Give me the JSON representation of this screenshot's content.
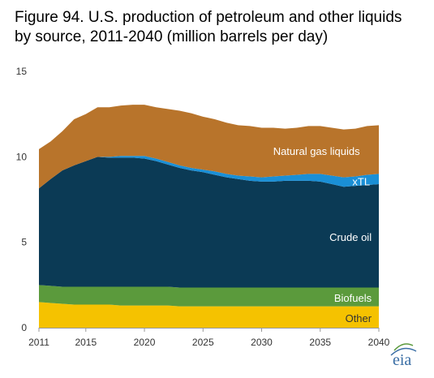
{
  "chart_data": {
    "type": "area",
    "title": "Figure 94. U.S. production of petroleum and other liquids by source, 2011-2040 (million barrels per day)",
    "x": [
      2011,
      2012,
      2013,
      2014,
      2015,
      2016,
      2017,
      2018,
      2019,
      2020,
      2021,
      2022,
      2023,
      2024,
      2025,
      2026,
      2027,
      2028,
      2029,
      2030,
      2031,
      2032,
      2033,
      2034,
      2035,
      2036,
      2037,
      2038,
      2039,
      2040
    ],
    "x_ticks": [
      2011,
      2015,
      2020,
      2025,
      2030,
      2035,
      2040
    ],
    "y_ticks": [
      0,
      5,
      10,
      15
    ],
    "ylim": [
      0,
      15
    ],
    "series": [
      {
        "name": "Other",
        "color": "#f5c200",
        "values": [
          1.5,
          1.45,
          1.4,
          1.35,
          1.35,
          1.35,
          1.35,
          1.3,
          1.3,
          1.3,
          1.3,
          1.3,
          1.25,
          1.25,
          1.25,
          1.25,
          1.25,
          1.25,
          1.25,
          1.25,
          1.25,
          1.25,
          1.25,
          1.25,
          1.25,
          1.25,
          1.25,
          1.25,
          1.25,
          1.25
        ]
      },
      {
        "name": "Biofuels",
        "color": "#5b9a3c",
        "values": [
          1.0,
          1.0,
          1.0,
          1.05,
          1.05,
          1.05,
          1.05,
          1.1,
          1.1,
          1.1,
          1.1,
          1.1,
          1.1,
          1.1,
          1.1,
          1.1,
          1.1,
          1.1,
          1.1,
          1.1,
          1.1,
          1.1,
          1.1,
          1.1,
          1.1,
          1.1,
          1.1,
          1.1,
          1.1,
          1.1
        ]
      },
      {
        "name": "Crude oil",
        "color": "#0b3a55",
        "values": [
          5.65,
          6.25,
          6.8,
          7.1,
          7.35,
          7.6,
          7.55,
          7.55,
          7.55,
          7.5,
          7.35,
          7.15,
          7.0,
          6.85,
          6.75,
          6.6,
          6.45,
          6.35,
          6.25,
          6.2,
          6.2,
          6.25,
          6.25,
          6.25,
          6.2,
          6.05,
          5.9,
          5.95,
          6.0,
          6.05
        ]
      },
      {
        "name": "xTL",
        "color": "#1a8fd6",
        "values": [
          0.0,
          0.0,
          0.0,
          0.0,
          0.0,
          0.0,
          0.05,
          0.1,
          0.1,
          0.15,
          0.15,
          0.15,
          0.15,
          0.15,
          0.15,
          0.2,
          0.2,
          0.2,
          0.25,
          0.25,
          0.3,
          0.3,
          0.35,
          0.4,
          0.45,
          0.5,
          0.55,
          0.55,
          0.6,
          0.6
        ]
      },
      {
        "name": "Natural gas liquids",
        "color": "#b8742b",
        "values": [
          2.3,
          2.2,
          2.3,
          2.7,
          2.75,
          2.9,
          2.9,
          2.95,
          3.0,
          3.0,
          3.0,
          3.1,
          3.2,
          3.2,
          3.1,
          3.05,
          3.0,
          2.95,
          2.95,
          2.9,
          2.85,
          2.75,
          2.75,
          2.8,
          2.8,
          2.8,
          2.8,
          2.8,
          2.85,
          2.85
        ]
      }
    ]
  },
  "logo_text": "eia"
}
